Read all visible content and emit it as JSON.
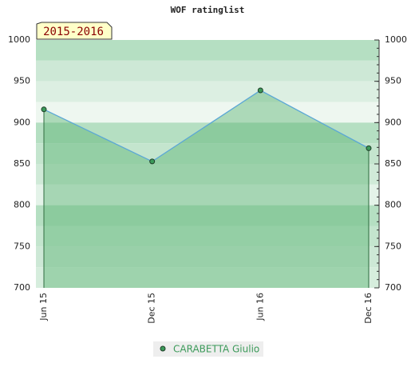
{
  "chart_data": {
    "type": "line",
    "title": "WOF ratinglist",
    "annotation": "2015-2016",
    "categories": [
      "Jun 15",
      "Dec 15",
      "Jun 16",
      "Dec 16"
    ],
    "series": [
      {
        "name": "CARABETTA Giulio",
        "color": "#3c9a5a",
        "values": [
          916,
          853,
          939,
          869
        ]
      }
    ],
    "ylim": [
      700,
      1000
    ],
    "yticks": [
      700,
      750,
      800,
      850,
      900,
      950,
      1000
    ]
  }
}
